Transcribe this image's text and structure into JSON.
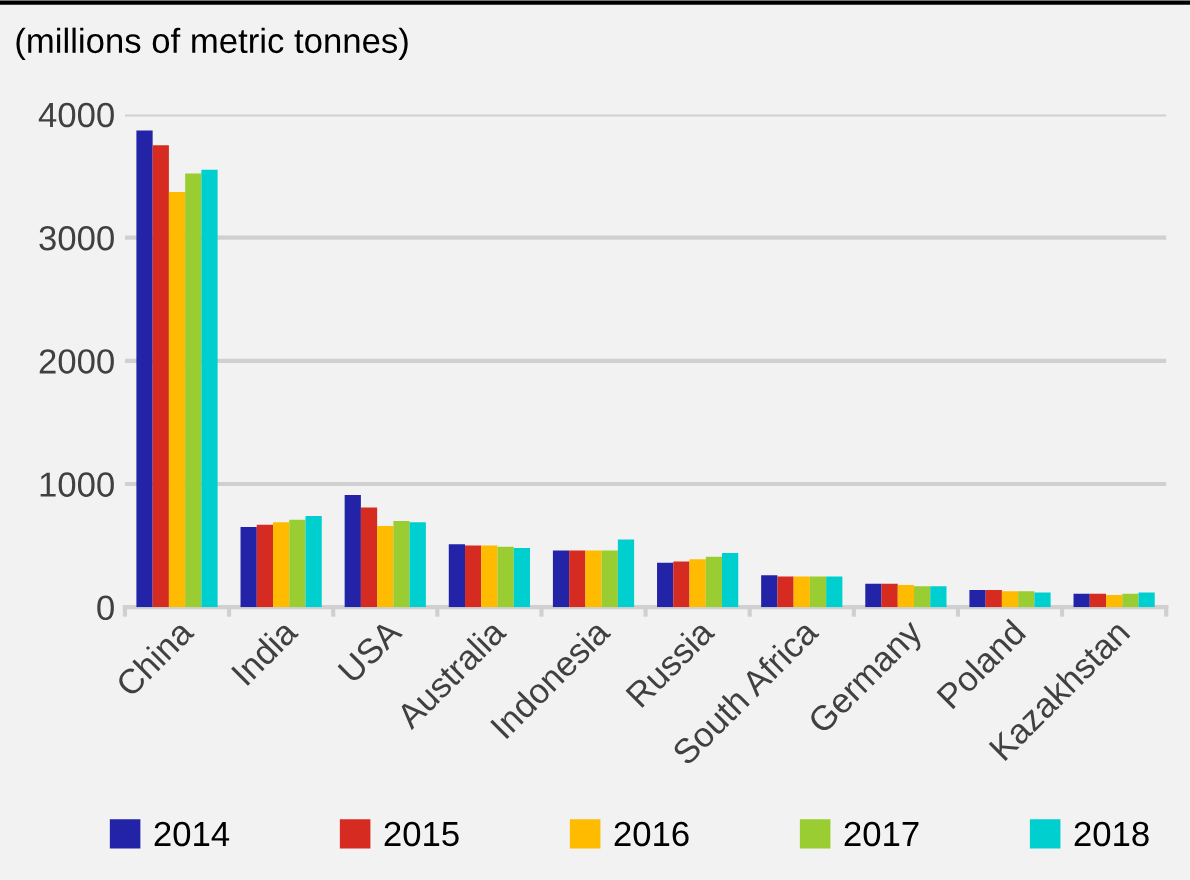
{
  "chart_data": {
    "type": "bar",
    "title": "(millions of metric tonnes)",
    "categories": [
      "China",
      "India",
      "USA",
      "Australia",
      "Indonesia",
      "Russia",
      "South Africa",
      "Germany",
      "Poland",
      "Kazakhstan"
    ],
    "series": [
      {
        "name": "2014",
        "color": "#2323a8",
        "values": [
          3870,
          650,
          910,
          510,
          460,
          360,
          260,
          190,
          140,
          110
        ]
      },
      {
        "name": "2015",
        "color": "#d62b20",
        "values": [
          3750,
          670,
          810,
          500,
          460,
          370,
          250,
          190,
          140,
          110
        ]
      },
      {
        "name": "2016",
        "color": "#ffbb00",
        "values": [
          3370,
          690,
          660,
          500,
          460,
          390,
          250,
          180,
          130,
          100
        ]
      },
      {
        "name": "2017",
        "color": "#9acd32",
        "values": [
          3520,
          710,
          700,
          490,
          460,
          410,
          250,
          170,
          130,
          110
        ]
      },
      {
        "name": "2018",
        "color": "#00cfcf",
        "values": [
          3550,
          740,
          690,
          480,
          550,
          440,
          250,
          170,
          120,
          120
        ]
      }
    ],
    "ylim": [
      0,
      4000
    ],
    "yticks": [
      0,
      1000,
      2000,
      3000,
      4000
    ],
    "grid": "y",
    "legend": "bottom"
  }
}
